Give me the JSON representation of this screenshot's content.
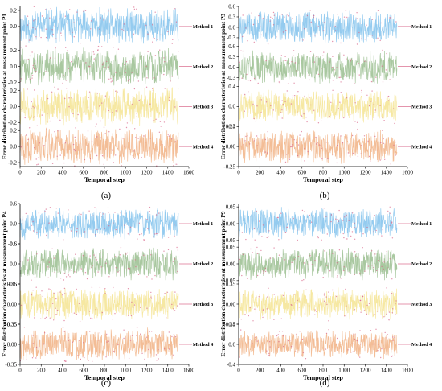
{
  "chart_data": [
    {
      "type": "line",
      "panel_label": "(a)",
      "xlabel": "Temporal step",
      "ylabel": "Error distribution characteristics at measurement point P1",
      "xlim": [
        0,
        1600
      ],
      "xticks": [
        "0",
        "200",
        "400",
        "600",
        "800",
        "1000",
        "1200",
        "1400",
        "1600"
      ],
      "x_range": [
        0,
        1500
      ],
      "series": [
        {
          "name": "Method 1",
          "color": "#8ec8ee",
          "amplitude": 0.25,
          "ylim": [
            -0.25,
            0.25
          ],
          "yticks": [
            "0.2",
            "0.0"
          ]
        },
        {
          "name": "Method 2",
          "color": "#a4c59b",
          "amplitude": 0.25,
          "ylim": [
            -0.25,
            0.25
          ],
          "yticks": [
            "0.2",
            "0.0",
            "-0.2"
          ]
        },
        {
          "name": "Method 3",
          "color": "#f6e79d",
          "amplitude": 0.25,
          "ylim": [
            -0.25,
            0.25
          ],
          "yticks": [
            "0.2",
            "0.0",
            "-0.2"
          ]
        },
        {
          "name": "Method 4",
          "color": "#f2b990",
          "amplitude": 0.25,
          "ylim": [
            -0.25,
            0.25
          ],
          "yticks": [
            "0.2",
            "0.0",
            "-0.2"
          ]
        }
      ]
    },
    {
      "type": "line",
      "panel_label": "(b)",
      "xlabel": "Temporal step",
      "ylabel": "Error distribution characteristics at measurement point P3",
      "xlim": [
        0,
        1600
      ],
      "xticks": [
        "0",
        "200",
        "400",
        "600",
        "800",
        "1000",
        "1200",
        "1400",
        "1600"
      ],
      "x_range": [
        0,
        1500
      ],
      "series": [
        {
          "name": "Method 1",
          "color": "#8ec8ee",
          "amplitude": 0.5,
          "ylim": [
            -0.55,
            0.6
          ],
          "yticks": [
            "0.6",
            "0.3",
            "0.0",
            "-0.3"
          ]
        },
        {
          "name": "Method 2",
          "color": "#a4c59b",
          "amplitude": 0.5,
          "ylim": [
            -0.55,
            0.6
          ],
          "yticks": [
            "0.6",
            "0.3",
            "0.0",
            "-0.3"
          ]
        },
        {
          "name": "Method 3",
          "color": "#f6e79d",
          "amplitude": 0.35,
          "ylim": [
            -0.4,
            0.4
          ],
          "yticks": [
            "0.4",
            "0.0",
            "-0.4"
          ]
        },
        {
          "name": "Method 4",
          "color": "#f2b990",
          "amplitude": 0.22,
          "ylim": [
            -0.25,
            0.25
          ],
          "yticks": [
            "0.25",
            "0.00",
            "-0.25"
          ]
        }
      ]
    },
    {
      "type": "line",
      "panel_label": "(c)",
      "xlabel": "Temporal step",
      "ylabel": "Error distribution characteristics at measurement point P4",
      "xlim": [
        0,
        1600
      ],
      "xticks": [
        "0",
        "200",
        "400",
        "600",
        "800",
        "1000",
        "1200",
        "1400",
        "1600"
      ],
      "x_range": [
        0,
        1500
      ],
      "series": [
        {
          "name": "Method 1",
          "color": "#8ec8ee",
          "amplitude": 0.5,
          "ylim": [
            -0.6,
            0.6
          ],
          "yticks": [
            "0.6",
            "0.0",
            "-0.6"
          ]
        },
        {
          "name": "Method 2",
          "color": "#a4c59b",
          "amplitude": 0.5,
          "ylim": [
            -0.6,
            0.6
          ],
          "yticks": [
            "0.6",
            "0.0",
            "-0.6"
          ]
        },
        {
          "name": "Method 3",
          "color": "#f6e79d",
          "amplitude": 0.3,
          "ylim": [
            -0.35,
            0.35
          ],
          "yticks": [
            "0.35",
            "0.00",
            "-0.35"
          ]
        },
        {
          "name": "Method 4",
          "color": "#f2b990",
          "amplitude": 0.3,
          "ylim": [
            -0.35,
            0.35
          ],
          "yticks": [
            "0.35",
            "0.00",
            "-0.35"
          ]
        }
      ]
    },
    {
      "type": "line",
      "panel_label": "(d)",
      "xlabel": "Temporal step",
      "ylabel": "Error distribution characteristics at measurement point P9",
      "xlim": [
        0,
        1600
      ],
      "xticks": [
        "0",
        "200",
        "400",
        "600",
        "800",
        "1000",
        "1200",
        "1400",
        "1600"
      ],
      "x_range": [
        0,
        1500
      ],
      "series": [
        {
          "name": "Method 1",
          "color": "#8ec8ee",
          "amplitude": 0.05,
          "ylim": [
            -0.06,
            0.06
          ],
          "yticks": [
            "0.05",
            "0.00",
            "-0.05"
          ]
        },
        {
          "name": "Method 2",
          "color": "#a4c59b",
          "amplitude": 0.05,
          "ylim": [
            -0.06,
            0.06
          ],
          "yticks": [
            "0.05",
            "0.00",
            "-0.05"
          ]
        },
        {
          "name": "Method 3",
          "color": "#f6e79d",
          "amplitude": 0.3,
          "ylim": [
            -0.35,
            0.35
          ],
          "yticks": [
            "0.35",
            "0.00",
            "-0.35"
          ]
        },
        {
          "name": "Method 4",
          "color": "#f2b990",
          "amplitude": 0.3,
          "ylim": [
            -0.4,
            0.4
          ],
          "yticks": [
            "0.4",
            "0.0",
            "-0.4"
          ]
        }
      ]
    }
  ],
  "colors": {
    "marker": "#d9668a",
    "axis": "#000000"
  }
}
